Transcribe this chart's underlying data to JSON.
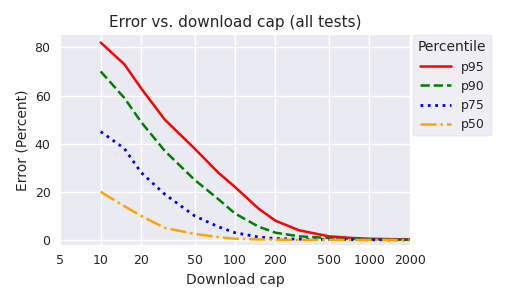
{
  "title": "Error vs. download cap (all tests)",
  "xlabel": "Download cap",
  "ylabel": "Error (Percent)",
  "x_ticks": [
    5,
    10,
    20,
    50,
    100,
    200,
    500,
    1000,
    2000
  ],
  "x_tick_labels": [
    "5",
    "10",
    "20",
    "50",
    "100",
    "200",
    "500",
    "1000",
    "2000"
  ],
  "xlim": [
    5,
    2000
  ],
  "ylim": [
    -2,
    85
  ],
  "series": {
    "p95": {
      "color": "#ff0000",
      "linestyle": "-",
      "linewidth": 1.8,
      "x": [
        10,
        15,
        20,
        30,
        50,
        75,
        100,
        150,
        200,
        300,
        500,
        750,
        1000,
        1500,
        2000
      ],
      "y": [
        82,
        73,
        63,
        50,
        38,
        28,
        22,
        13,
        8,
        4,
        1.5,
        0.8,
        0.5,
        0.3,
        0.2
      ]
    },
    "p90": {
      "color": "#008000",
      "linestyle": "--",
      "linewidth": 1.8,
      "x": [
        10,
        15,
        20,
        30,
        50,
        75,
        100,
        150,
        200,
        300,
        500,
        750,
        1000,
        1500,
        2000
      ],
      "y": [
        70,
        59,
        49,
        37,
        25,
        17,
        11,
        5.5,
        3,
        1.5,
        0.8,
        0.4,
        0.2,
        0.1,
        0.05
      ]
    },
    "p75": {
      "color": "#0000ff",
      "linestyle": ":",
      "linewidth": 2.0,
      "x": [
        10,
        15,
        20,
        30,
        50,
        75,
        100,
        150,
        200,
        300,
        500,
        750,
        1000,
        1500,
        2000
      ],
      "y": [
        45,
        38,
        28,
        19,
        10,
        5.5,
        3,
        1.2,
        0.6,
        0.3,
        0.15,
        0.1,
        0.05,
        0.02,
        0.01
      ]
    },
    "p50": {
      "color": "#ffa500",
      "linestyle": "-.",
      "linewidth": 1.8,
      "x": [
        10,
        15,
        20,
        30,
        50,
        75,
        100,
        150,
        200,
        300,
        500,
        750,
        1000,
        1500,
        2000
      ],
      "y": [
        20,
        14,
        10,
        5,
        2.5,
        1.2,
        0.5,
        0.2,
        0.1,
        0.05,
        0.02,
        0.01,
        0.01,
        0.005,
        0.002
      ]
    }
  },
  "legend_title": "Percentile",
  "title_fontsize": 11,
  "label_fontsize": 10,
  "tick_fontsize": 9,
  "legend_fontsize": 9,
  "legend_title_fontsize": 10
}
